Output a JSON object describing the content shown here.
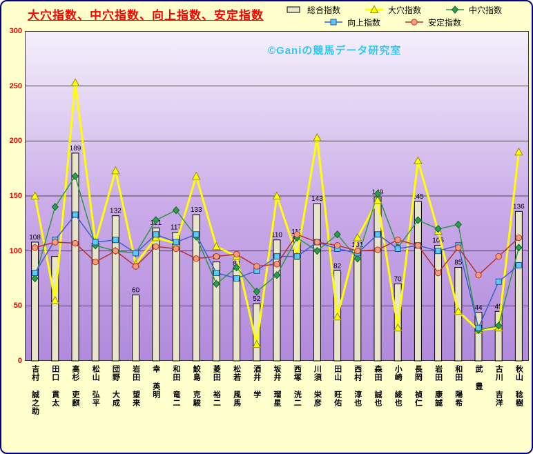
{
  "title": "大穴指数、中穴指数、向上指数、安定指数",
  "watermark": "©Ganiの競馬データ研究室",
  "legend": {
    "rows": [
      [
        {
          "marker": "bar",
          "label": "総合指数"
        },
        {
          "marker": "triangle",
          "label": "大穴指数"
        },
        {
          "marker": "diamond",
          "label": "中穴指数"
        }
      ],
      [
        {
          "marker": "square",
          "label": "向上指数"
        },
        {
          "marker": "circle",
          "label": "安定指数"
        }
      ]
    ]
  },
  "colors": {
    "background": "#FFFFCC",
    "outer_border": "#000080",
    "title_text": "#FF0000",
    "axis_tick_text": "#E00000",
    "x_label_text": "#000000",
    "plot_gradient_top": "#F4F0FB",
    "plot_gradient_bottom": "#B18ADC",
    "grid": "#4A4A4A",
    "plot_border": "#3C3C3C",
    "bar_fill": "#E9E5CB",
    "bar_stroke": "#000000",
    "watermark_text": "#2FC9F2",
    "series": {
      "大穴指数": "#FFFF00",
      "中穴指数": "#2E9642",
      "向上指数": "#3A5FCD",
      "安定指数": "#B23030"
    },
    "markers": {
      "triangle": {
        "fill": "#FFFF00",
        "stroke": "#8F8F00"
      },
      "diamond": {
        "fill": "#29A14B",
        "stroke": "#14602C"
      },
      "square": {
        "fill": "#5BCBEF",
        "stroke": "#1F4FA3"
      },
      "circle": {
        "fill": "#F0A080",
        "stroke": "#C03018"
      },
      "bar": {
        "fill": "#E9E5CB",
        "stroke": "#000000"
      }
    }
  },
  "chart_data": {
    "type": "bar",
    "title": "大穴指数、中穴指数、向上指数、安定指数",
    "ylim": [
      0,
      300
    ],
    "yticks": [
      0,
      50,
      100,
      150,
      200,
      250,
      300
    ],
    "grid": true,
    "legend_position": "top",
    "categories": [
      "吉村 誠之助",
      "田口 貫太",
      "高杉 吏麒",
      "松山 弘平",
      "団野 大成",
      "岩田 望来",
      "幸 英明",
      "和田 竜二",
      "鮫島 克駿",
      "菱田 裕二",
      "松若 風馬",
      "酒井 学",
      "坂井 瑠星",
      "西塚 洸二",
      "川須 栄彦",
      "田山 旺佑",
      "西村 淳也",
      "森田 誠也",
      "小崎 綾也",
      "長岡 禎仁",
      "岩田 康誠",
      "和田 陽希",
      "武 豊",
      "古川 吉洋",
      "秋山 稔樹"
    ],
    "bar_series": {
      "name": "総合指数",
      "values": [
        108,
        95,
        189,
        107,
        132,
        60,
        121,
        117,
        133,
        90,
        84,
        52,
        110,
        113,
        143,
        82,
        101,
        149,
        70,
        145,
        105,
        85,
        44,
        45,
        136
      ],
      "data_labels": [
        "108",
        null,
        "189",
        null,
        "132",
        "60",
        "121",
        "117",
        "133",
        "90",
        "84",
        "52",
        "110",
        "113",
        "143",
        "82",
        "101",
        "149",
        "70",
        "145",
        "105",
        "85",
        "44",
        "45",
        "136"
      ]
    },
    "line_series": [
      {
        "name": "大穴指数",
        "marker": "triangle",
        "line_width": 3,
        "values": [
          150,
          55,
          253,
          108,
          173,
          88,
          112,
          107,
          168,
          104,
          95,
          15,
          150,
          95,
          203,
          40,
          112,
          146,
          30,
          182,
          118,
          45,
          28,
          30,
          190
        ]
      },
      {
        "name": "中穴指数",
        "marker": "diamond",
        "line_width": 1.5,
        "values": [
          75,
          140,
          168,
          105,
          100,
          98,
          128,
          137,
          113,
          70,
          85,
          63,
          78,
          112,
          100,
          115,
          93,
          152,
          103,
          128,
          120,
          124,
          28,
          32,
          103
        ]
      },
      {
        "name": "向上指数",
        "marker": "square",
        "line_width": 1.5,
        "values": [
          80,
          110,
          133,
          108,
          110,
          98,
          115,
          108,
          115,
          80,
          75,
          82,
          95,
          95,
          108,
          102,
          98,
          115,
          102,
          105,
          100,
          105,
          30,
          72,
          87
        ]
      },
      {
        "name": "安定指数",
        "marker": "circle",
        "line_width": 1.5,
        "values": [
          103,
          108,
          107,
          90,
          100,
          86,
          104,
          102,
          93,
          95,
          97,
          86,
          88,
          115,
          108,
          105,
          100,
          101,
          110,
          105,
          80,
          103,
          78,
          95,
          112
        ]
      }
    ]
  }
}
